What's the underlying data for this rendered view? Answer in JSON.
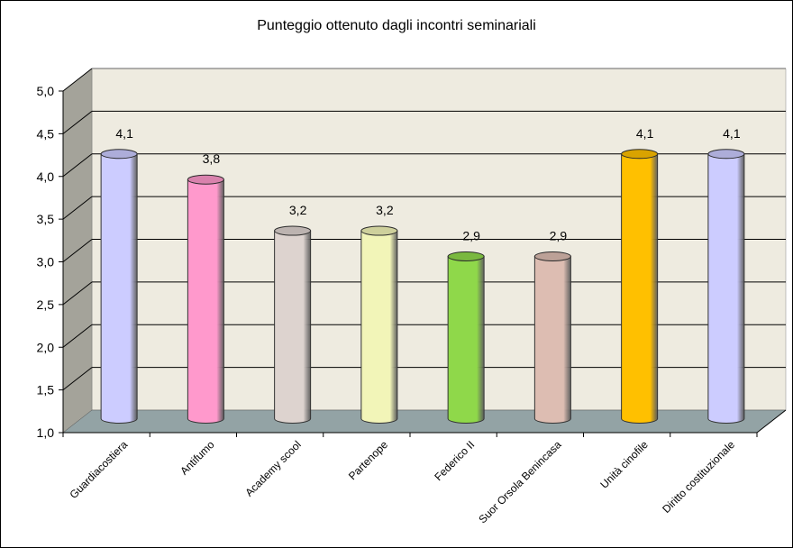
{
  "chart_data": {
    "type": "bar",
    "style": "3d-cylinder",
    "title": "Punteggio ottenuto dagli incontri seminariali",
    "xlabel": "",
    "ylabel": "",
    "ylim": [
      1.0,
      5.0
    ],
    "yticks": [
      "1,0",
      "1,5",
      "2,0",
      "2,5",
      "3,0",
      "3,5",
      "4,0",
      "4,5",
      "5,0"
    ],
    "grid": true,
    "legend": null,
    "categories": [
      "Guardiacostiera",
      "Antifumo",
      "Academy scool",
      "Partenope",
      "Federico II",
      "Suor Orsola Benincasa",
      "Unità cinofile",
      "Diritto costituzionale"
    ],
    "values": [
      4.1,
      3.8,
      3.2,
      3.2,
      2.9,
      2.9,
      4.1,
      4.1
    ],
    "value_labels": [
      "4,1",
      "3,8",
      "3,2",
      "3,2",
      "2,9",
      "2,9",
      "4,1",
      "4,1"
    ],
    "colors": [
      "#ccccff",
      "#ff99cc",
      "#ddd3cf",
      "#f2f5b8",
      "#8fd84a",
      "#ddbdb2",
      "#ffc000",
      "#ccccff"
    ]
  }
}
